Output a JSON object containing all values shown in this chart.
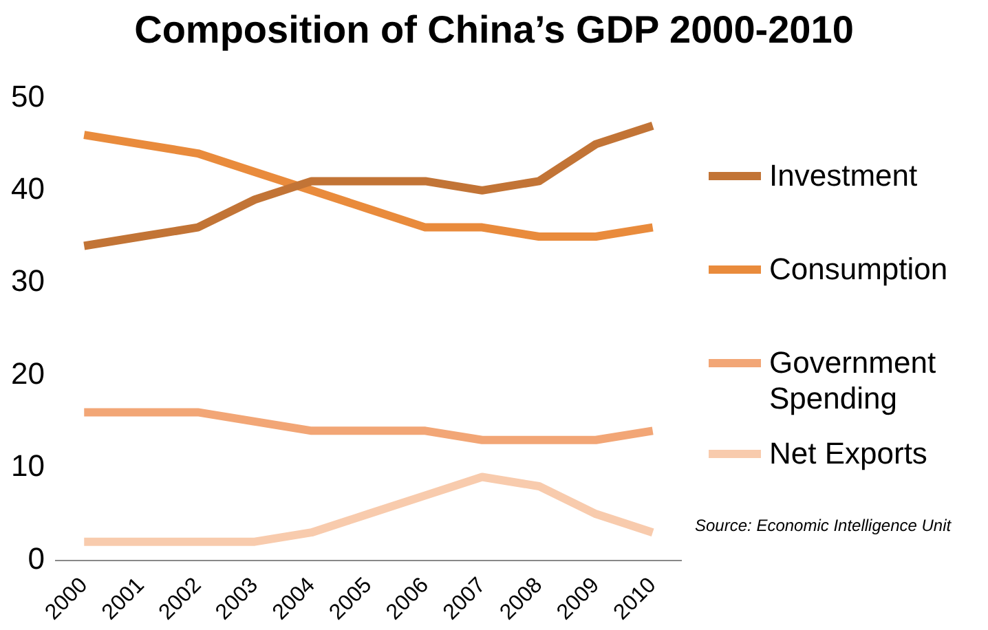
{
  "chart_data": {
    "type": "line",
    "title": "Composition of China’s GDP 2000-2010",
    "categories": [
      "2000",
      "2001",
      "2002",
      "2003",
      "2004",
      "2005",
      "2006",
      "2007",
      "2008",
      "2009",
      "2010"
    ],
    "series": [
      {
        "name": "Investment",
        "color": "#c27436",
        "values": [
          34,
          35,
          36,
          39,
          41,
          41,
          41,
          40,
          41,
          45,
          47
        ]
      },
      {
        "name": "Consumption",
        "color": "#e98b3c",
        "values": [
          46,
          45,
          44,
          42,
          40,
          38,
          36,
          36,
          35,
          35,
          36
        ]
      },
      {
        "name": "Government Spending",
        "color": "#f2a676",
        "values": [
          16,
          16,
          16,
          15,
          14,
          14,
          14,
          13,
          13,
          13,
          14
        ]
      },
      {
        "name": "Net Exports",
        "color": "#f8cbad",
        "values": [
          2,
          2,
          2,
          2,
          3,
          5,
          7,
          9,
          8,
          5,
          3
        ]
      }
    ],
    "ylim": [
      0,
      50
    ],
    "yticks": [
      0,
      10,
      20,
      30,
      40,
      50
    ],
    "grid": false,
    "legend": "right",
    "marker": "none",
    "line_style": "solid",
    "annotations": [
      "Source: Economic Intelligence Unit"
    ]
  }
}
